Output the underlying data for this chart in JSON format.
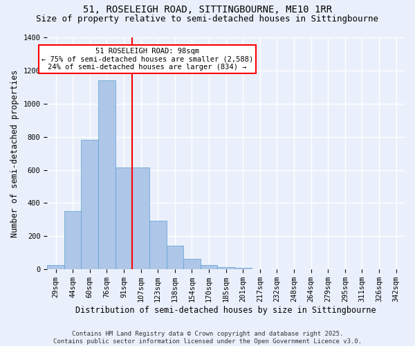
{
  "title_line1": "51, ROSELEIGH ROAD, SITTINGBOURNE, ME10 1RR",
  "title_line2": "Size of property relative to semi-detached houses in Sittingbourne",
  "xlabel": "Distribution of semi-detached houses by size in Sittingbourne",
  "ylabel": "Number of semi-detached properties",
  "categories": [
    "29sqm",
    "44sqm",
    "60sqm",
    "76sqm",
    "91sqm",
    "107sqm",
    "123sqm",
    "138sqm",
    "154sqm",
    "170sqm",
    "185sqm",
    "201sqm",
    "217sqm",
    "232sqm",
    "248sqm",
    "264sqm",
    "279sqm",
    "295sqm",
    "311sqm",
    "326sqm",
    "342sqm"
  ],
  "values": [
    25,
    350,
    780,
    1140,
    615,
    615,
    295,
    145,
    65,
    25,
    15,
    10,
    0,
    0,
    0,
    0,
    0,
    0,
    0,
    0,
    0
  ],
  "bar_color": "#aec6e8",
  "bar_edge_color": "#5a9fd4",
  "vline_color": "red",
  "vline_pos": 4.5,
  "annotation_text": "51 ROSELEIGH ROAD: 98sqm\n← 75% of semi-detached houses are smaller (2,588)\n24% of semi-detached houses are larger (834) →",
  "annotation_box_color": "white",
  "annotation_box_edge": "red",
  "ylim": [
    0,
    1400
  ],
  "yticks": [
    0,
    200,
    400,
    600,
    800,
    1000,
    1200,
    1400
  ],
  "footer": "Contains HM Land Registry data © Crown copyright and database right 2025.\nContains public sector information licensed under the Open Government Licence v3.0.",
  "bg_color": "#eaf0fb",
  "plot_bg_color": "#eaf0fb",
  "grid_color": "white",
  "title_fontsize": 10,
  "subtitle_fontsize": 9,
  "axis_label_fontsize": 8.5,
  "tick_fontsize": 7.5,
  "annotation_fontsize": 7.5,
  "footer_fontsize": 6.5
}
